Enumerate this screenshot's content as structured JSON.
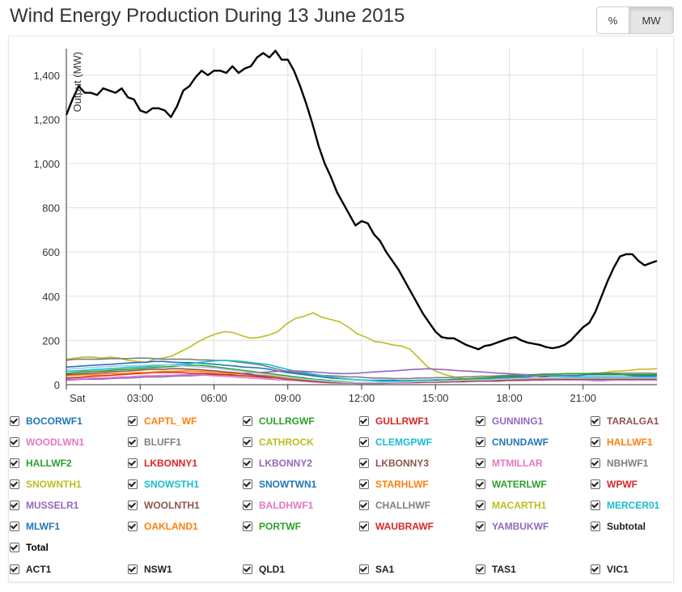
{
  "header": {
    "title": "Wind Energy Production During 13 June 2015"
  },
  "toggle": {
    "percent_label": "%",
    "mw_label": "MW",
    "active": "MW"
  },
  "chart_data": {
    "type": "line",
    "title": "Wind Energy Production During 13 June 2015",
    "ylabel": "Output (MW)",
    "xlabel": "",
    "ylim": [
      0,
      1520
    ],
    "xlim_hours": [
      0,
      24
    ],
    "y_ticks": [
      0,
      200,
      400,
      600,
      800,
      "1,000",
      "1,200",
      "1,400"
    ],
    "x_ticks": [
      "Sat",
      "03:00",
      "06:00",
      "09:00",
      "12:00",
      "15:00",
      "18:00",
      "21:00"
    ],
    "grid": true,
    "total": {
      "name": "Total",
      "color": "#000000",
      "x": [
        0,
        0.25,
        0.5,
        0.75,
        1,
        1.25,
        1.5,
        1.75,
        2,
        2.25,
        2.5,
        2.75,
        3,
        3.25,
        3.5,
        3.75,
        4,
        4.25,
        4.5,
        4.75,
        5,
        5.25,
        5.5,
        5.75,
        6,
        6.25,
        6.5,
        6.75,
        7,
        7.25,
        7.5,
        7.75,
        8,
        8.25,
        8.5,
        8.75,
        9,
        9.25,
        9.5,
        9.75,
        10,
        10.25,
        10.5,
        10.75,
        11,
        11.25,
        11.5,
        11.75,
        12,
        12.25,
        12.5,
        12.75,
        13,
        13.25,
        13.5,
        13.75,
        14,
        14.25,
        14.5,
        14.75,
        15,
        15.25,
        15.5,
        15.75,
        16,
        16.25,
        16.5,
        16.75,
        17,
        17.25,
        17.5,
        17.75,
        18,
        18.25,
        18.5,
        18.75,
        19,
        19.25,
        19.5,
        19.75,
        20,
        20.25,
        20.5,
        20.75,
        21,
        21.25,
        21.5,
        21.75,
        22,
        22.25,
        22.5,
        22.75,
        23,
        23.25,
        23.5,
        23.75,
        24
      ],
      "values": [
        1220,
        1290,
        1350,
        1320,
        1320,
        1310,
        1340,
        1330,
        1320,
        1340,
        1300,
        1290,
        1240,
        1230,
        1250,
        1250,
        1240,
        1210,
        1260,
        1330,
        1350,
        1390,
        1420,
        1400,
        1420,
        1420,
        1410,
        1440,
        1410,
        1430,
        1440,
        1480,
        1500,
        1480,
        1510,
        1470,
        1470,
        1420,
        1350,
        1270,
        1180,
        1080,
        1000,
        940,
        870,
        820,
        770,
        720,
        740,
        730,
        680,
        650,
        600,
        560,
        520,
        470,
        420,
        370,
        320,
        280,
        240,
        215,
        210,
        210,
        195,
        180,
        170,
        160,
        175,
        180,
        190,
        200,
        210,
        215,
        200,
        190,
        185,
        180,
        170,
        165,
        170,
        180,
        200,
        230,
        260,
        280,
        330,
        400,
        470,
        530,
        580,
        590,
        590,
        560,
        540,
        550,
        560
      ]
    },
    "series": [
      {
        "color": "#bcbd22",
        "values": [
          115,
          120,
          125,
          125,
          120,
          125,
          120,
          110,
          105,
          100,
          115,
          120,
          130,
          150,
          170,
          195,
          215,
          230,
          240,
          235,
          220,
          210,
          215,
          225,
          240,
          275,
          300,
          310,
          325,
          305,
          295,
          285,
          260,
          230,
          215,
          195,
          190,
          180,
          175,
          160,
          120,
          80,
          60,
          45,
          35,
          28,
          25,
          22,
          20,
          20,
          20,
          22,
          25,
          25,
          24,
          25,
          30,
          35,
          40,
          45,
          50,
          55,
          60,
          62,
          65,
          70,
          70,
          72
        ]
      },
      {
        "color": "#7f7f7f",
        "values": [
          110,
          115,
          115,
          115,
          115,
          118,
          118,
          118,
          120,
          120,
          118,
          115,
          115,
          115,
          115,
          112,
          112,
          110,
          110,
          105,
          100,
          95,
          90,
          80,
          70,
          60,
          55,
          50,
          45,
          42,
          40,
          38,
          35,
          35,
          32,
          30,
          30,
          28,
          28,
          28,
          30,
          30,
          32,
          32,
          33,
          35,
          36,
          38,
          38,
          40,
          42,
          45,
          45,
          45,
          48,
          48,
          48,
          50,
          50,
          50,
          52,
          52,
          52,
          52,
          52,
          52,
          52,
          50
        ]
      },
      {
        "color": "#1f77b4",
        "values": [
          80,
          82,
          85,
          88,
          90,
          92,
          95,
          98,
          100,
          102,
          105,
          105,
          102,
          100,
          100,
          98,
          95,
          92,
          88,
          85,
          80,
          78,
          75,
          70,
          62,
          55,
          50,
          45,
          40,
          35,
          30,
          28,
          25,
          22,
          20,
          20,
          20,
          20,
          18,
          18,
          20,
          20,
          22,
          22,
          25,
          25,
          25,
          28,
          30,
          30,
          32,
          35,
          35,
          38,
          38,
          40,
          40,
          42,
          42,
          45,
          45,
          45,
          45,
          45,
          42,
          40,
          40,
          40
        ]
      },
      {
        "color": "#17becf",
        "values": [
          60,
          62,
          65,
          68,
          70,
          72,
          75,
          78,
          80,
          82,
          85,
          88,
          90,
          92,
          95,
          100,
          105,
          108,
          110,
          108,
          105,
          100,
          95,
          90,
          80,
          70,
          60,
          55,
          48,
          42,
          35,
          30,
          25,
          22,
          20,
          18,
          15,
          15,
          15,
          15,
          18,
          18,
          20,
          20,
          22,
          22,
          25,
          25,
          25,
          28,
          28,
          30,
          30,
          30,
          30,
          32,
          32,
          35,
          35,
          35,
          35,
          35,
          35,
          35,
          35,
          35,
          35,
          35
        ]
      },
      {
        "color": "#2ca02c",
        "values": [
          50,
          55,
          58,
          60,
          62,
          65,
          68,
          70,
          72,
          75,
          78,
          80,
          82,
          85,
          88,
          88,
          85,
          80,
          75,
          70,
          65,
          60,
          55,
          50,
          45,
          40,
          35,
          30,
          25,
          22,
          18,
          15,
          12,
          10,
          10,
          10,
          10,
          10,
          12,
          12,
          15,
          15,
          18,
          20,
          22,
          25,
          28,
          30,
          32,
          35,
          38,
          40,
          42,
          45,
          45,
          48,
          48,
          50,
          50,
          50,
          48,
          48,
          48,
          45,
          45,
          45,
          45,
          45
        ]
      },
      {
        "color": "#9467bd",
        "values": [
          20,
          22,
          25,
          25,
          25,
          28,
          30,
          30,
          32,
          35,
          35,
          35,
          38,
          40,
          40,
          42,
          45,
          45,
          45,
          48,
          50,
          52,
          55,
          58,
          60,
          62,
          62,
          60,
          58,
          55,
          52,
          50,
          50,
          52,
          55,
          58,
          60,
          62,
          65,
          68,
          70,
          72,
          70,
          68,
          65,
          62,
          60,
          58,
          55,
          52,
          50,
          48,
          45,
          40,
          35,
          30,
          28,
          25,
          22,
          20,
          18,
          18,
          20,
          22,
          25,
          25,
          25,
          25
        ]
      },
      {
        "color": "#d62728",
        "values": [
          30,
          32,
          35,
          38,
          40,
          42,
          45,
          48,
          50,
          52,
          55,
          55,
          55,
          55,
          52,
          50,
          50,
          48,
          45,
          42,
          40,
          38,
          35,
          32,
          30,
          28,
          25,
          22,
          20,
          18,
          15,
          12,
          10,
          8,
          8,
          8,
          8,
          10,
          10,
          12,
          12,
          15,
          15,
          18,
          18,
          20,
          20,
          22,
          22,
          25,
          25,
          28,
          28,
          30,
          30,
          30,
          30,
          30,
          28,
          28,
          28,
          28,
          28,
          28,
          28,
          28,
          28,
          28
        ]
      },
      {
        "color": "#ff7f0e",
        "values": [
          40,
          42,
          45,
          45,
          48,
          50,
          50,
          52,
          55,
          55,
          58,
          60,
          60,
          62,
          62,
          60,
          58,
          55,
          52,
          50,
          48,
          45,
          42,
          40,
          35,
          30,
          25,
          22,
          20,
          18,
          15,
          12,
          10,
          10,
          10,
          10,
          10,
          10,
          12,
          12,
          12,
          15,
          15,
          15,
          18,
          18,
          20,
          20,
          20,
          22,
          22,
          25,
          25,
          25,
          25,
          28,
          28,
          28,
          28,
          30,
          30,
          30,
          30,
          30,
          30,
          30,
          30,
          30
        ]
      },
      {
        "color": "#e377c2",
        "values": [
          25,
          25,
          28,
          30,
          30,
          32,
          35,
          35,
          38,
          40,
          40,
          42,
          42,
          45,
          45,
          45,
          42,
          40,
          38,
          35,
          32,
          30,
          28,
          25,
          22,
          20,
          18,
          15,
          12,
          10,
          8,
          8,
          8,
          6,
          6,
          6,
          6,
          8,
          8,
          8,
          10,
          10,
          10,
          12,
          12,
          12,
          15,
          15,
          15,
          15,
          18,
          18,
          18,
          20,
          20,
          20,
          20,
          20,
          20,
          20,
          20,
          20,
          20,
          20,
          20,
          20,
          20,
          20
        ]
      },
      {
        "color": "#8c564b",
        "values": [
          45,
          48,
          50,
          52,
          55,
          58,
          60,
          62,
          65,
          68,
          70,
          70,
          72,
          72,
          70,
          68,
          65,
          62,
          58,
          55,
          50,
          45,
          40,
          35,
          30,
          25,
          22,
          18,
          15,
          12,
          10,
          8,
          8,
          8,
          8,
          8,
          8,
          8,
          10,
          10,
          10,
          12,
          12,
          12,
          15,
          15,
          15,
          18,
          18,
          18,
          20,
          20,
          22,
          22,
          22,
          25,
          25,
          25,
          25,
          25,
          25,
          25,
          25,
          25,
          25,
          25,
          25,
          25
        ]
      },
      {
        "color": "#aec7e8",
        "values": [
          70,
          72,
          75,
          78,
          80,
          82,
          85,
          85,
          88,
          88,
          90,
          90,
          88,
          85,
          82,
          80,
          78,
          75,
          70,
          65,
          60,
          55,
          50,
          45,
          40,
          35,
          30,
          25,
          22,
          18,
          15,
          12,
          10,
          10,
          10,
          10,
          10,
          10,
          12,
          12,
          15,
          15,
          15,
          18,
          18,
          20,
          20,
          22,
          22,
          25,
          25,
          28,
          28,
          30,
          30,
          30,
          30,
          30,
          30,
          30,
          30,
          30,
          30,
          30,
          30,
          30,
          30,
          30
        ]
      }
    ]
  },
  "legend": {
    "rows": [
      [
        {
          "label": "BOCORWF1",
          "color": "#1f77b4"
        },
        {
          "label": "CAPTL_WF",
          "color": "#ff7f0e"
        },
        {
          "label": "CULLRGWF",
          "color": "#2ca02c"
        },
        {
          "label": "GULLRWF1",
          "color": "#d62728"
        },
        {
          "label": "GUNNING1",
          "color": "#9467bd"
        },
        {
          "label": "TARALGA1",
          "color": "#8c564b"
        }
      ],
      [
        {
          "label": "WOODLWN1",
          "color": "#e377c2"
        },
        {
          "label": "BLUFF1",
          "color": "#7f7f7f"
        },
        {
          "label": "CATHROCK",
          "color": "#bcbd22"
        },
        {
          "label": "CLEMGPWF",
          "color": "#17becf"
        },
        {
          "label": "CNUNDAWF",
          "color": "#1f77b4"
        },
        {
          "label": "HALLWF1",
          "color": "#ff7f0e"
        }
      ],
      [
        {
          "label": "HALLWF2",
          "color": "#2ca02c"
        },
        {
          "label": "LKBONNY1",
          "color": "#d62728"
        },
        {
          "label": "LKBONNY2",
          "color": "#9467bd"
        },
        {
          "label": "LKBONNY3",
          "color": "#8c564b"
        },
        {
          "label": "MTMILLAR",
          "color": "#e377c2"
        },
        {
          "label": "NBHWF1",
          "color": "#7f7f7f"
        }
      ],
      [
        {
          "label": "SNOWNTH1",
          "color": "#bcbd22"
        },
        {
          "label": "SNOWSTH1",
          "color": "#17becf"
        },
        {
          "label": "SNOWTWN1",
          "color": "#1f77b4"
        },
        {
          "label": "STARHLWF",
          "color": "#ff7f0e"
        },
        {
          "label": "WATERLWF",
          "color": "#2ca02c"
        },
        {
          "label": "WPWF",
          "color": "#d62728"
        }
      ],
      [
        {
          "label": "MUSSELR1",
          "color": "#9467bd"
        },
        {
          "label": "WOOLNTH1",
          "color": "#8c564b"
        },
        {
          "label": "BALDHWF1",
          "color": "#e377c2"
        },
        {
          "label": "CHALLHWF",
          "color": "#7f7f7f"
        },
        {
          "label": "MACARTH1",
          "color": "#bcbd22"
        },
        {
          "label": "MERCER01",
          "color": "#17becf"
        }
      ],
      [
        {
          "label": "MLWF1",
          "color": "#1f77b4"
        },
        {
          "label": "OAKLAND1",
          "color": "#ff7f0e"
        },
        {
          "label": "PORTWF",
          "color": "#2ca02c"
        },
        {
          "label": "WAUBRAWF",
          "color": "#d62728"
        },
        {
          "label": "YAMBUKWF",
          "color": "#9467bd"
        },
        {
          "label": "Subtotal",
          "color": "#222222"
        }
      ],
      [
        {
          "label": "Total",
          "color": "#000000"
        }
      ],
      [
        {
          "label": "ACT1",
          "color": "#222222"
        },
        {
          "label": "NSW1",
          "color": "#222222"
        },
        {
          "label": "QLD1",
          "color": "#222222"
        },
        {
          "label": "SA1",
          "color": "#222222"
        },
        {
          "label": "TAS1",
          "color": "#222222"
        },
        {
          "label": "VIC1",
          "color": "#222222"
        }
      ]
    ]
  }
}
